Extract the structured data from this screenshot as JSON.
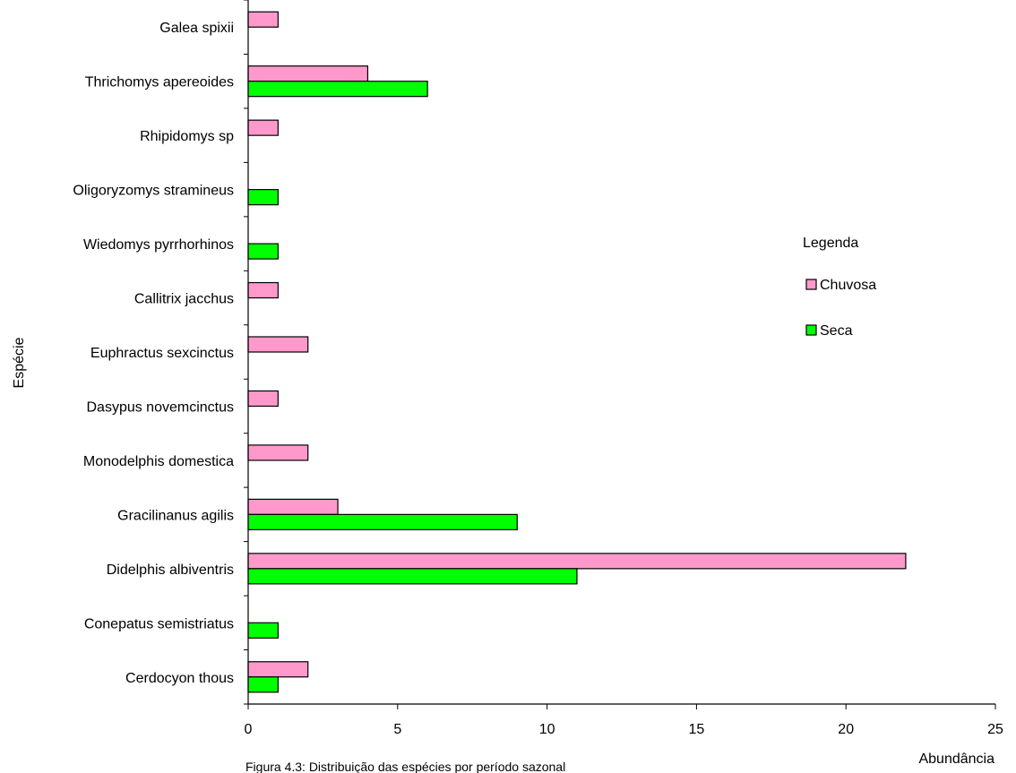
{
  "chart_data": {
    "type": "bar",
    "orientation": "horizontal",
    "categories": [
      "Galea spixii",
      "Thrichomys apereoides",
      "Rhipidomys sp",
      "Oligoryzomys stramineus",
      "Wiedomys pyrrhorhinos",
      "Callitrix jacchus",
      "Euphractus sexcinctus",
      "Dasypus novemcinctus",
      "Monodelphis domestica",
      "Gracilinanus agilis",
      "Didelphis albiventris",
      "Conepatus semistriatus",
      "Cerdocyon thous"
    ],
    "series": [
      {
        "name": "Chuvosa",
        "color": "#ff99cc",
        "values": [
          1,
          4,
          1,
          0,
          0,
          1,
          2,
          1,
          2,
          3,
          22,
          0,
          2
        ]
      },
      {
        "name": "Seca",
        "color": "#00ff00",
        "values": [
          0,
          6,
          0,
          1,
          1,
          0,
          0,
          0,
          0,
          9,
          11,
          1,
          1
        ]
      }
    ],
    "xlabel": "Abundância",
    "ylabel": "Espécie",
    "xlim": [
      0,
      25
    ],
    "xticks": [
      0,
      5,
      10,
      15,
      20,
      25
    ],
    "legend": {
      "title": "Legenda",
      "position": "right"
    },
    "grid": false
  },
  "caption": "Figura 4.3: Distribuição das espécies por período sazonal"
}
